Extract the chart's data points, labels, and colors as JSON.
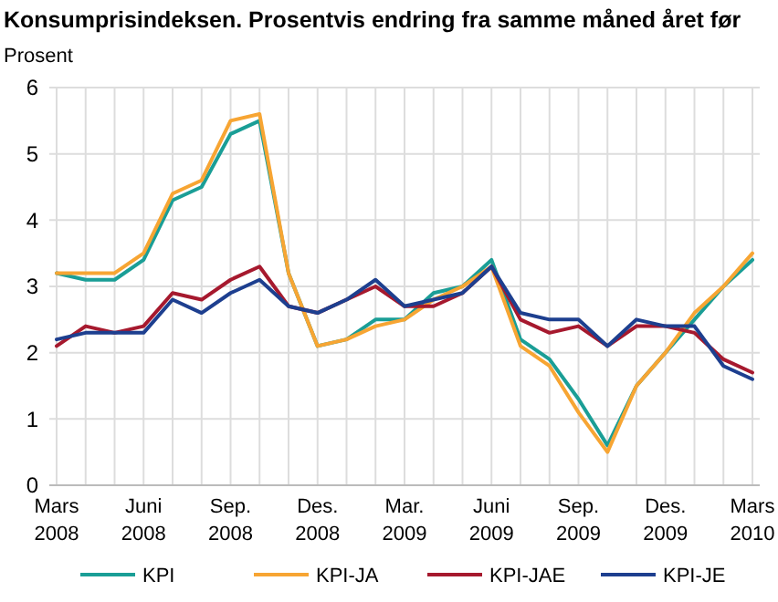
{
  "chart_data": {
    "type": "line",
    "title": "Konsumprisindeksen. Prosentvis endring fra samme måned året før",
    "ylabel": "Prosent",
    "categories": [
      "Mars\n2008",
      null,
      null,
      "Juni\n2008",
      null,
      null,
      "Sep.\n2008",
      null,
      null,
      "Des.\n2008",
      null,
      null,
      "Mar.\n2009",
      null,
      null,
      "Juni\n2009",
      null,
      null,
      "Sep.\n2009",
      null,
      null,
      "Des.\n2009",
      null,
      null,
      "Mars\n2010"
    ],
    "series": [
      {
        "name": "KPI",
        "color": "#1a9e96",
        "values": [
          3.2,
          3.1,
          3.1,
          3.4,
          4.3,
          4.5,
          5.3,
          5.5,
          3.2,
          2.1,
          2.2,
          2.5,
          2.5,
          2.9,
          3.0,
          3.4,
          2.2,
          1.9,
          1.3,
          0.6,
          1.5,
          2.0,
          2.5,
          3.0,
          3.4
        ]
      },
      {
        "name": "KPI-JA",
        "color": "#f7a533",
        "values": [
          3.2,
          3.2,
          3.2,
          3.5,
          4.4,
          4.6,
          5.5,
          5.6,
          3.2,
          2.1,
          2.2,
          2.4,
          2.5,
          2.8,
          3.0,
          3.3,
          2.1,
          1.8,
          1.1,
          0.5,
          1.5,
          2.0,
          2.6,
          3.0,
          3.5
        ]
      },
      {
        "name": "KPI-JAE",
        "color": "#a6192e",
        "values": [
          2.1,
          2.4,
          2.3,
          2.4,
          2.9,
          2.8,
          3.1,
          3.3,
          2.7,
          2.6,
          2.8,
          3.0,
          2.7,
          2.7,
          2.9,
          3.3,
          2.5,
          2.3,
          2.4,
          2.1,
          2.4,
          2.4,
          2.3,
          1.9,
          1.7
        ]
      },
      {
        "name": "KPI-JE",
        "color": "#1d3f8f",
        "values": [
          2.2,
          2.3,
          2.3,
          2.3,
          2.8,
          2.6,
          2.9,
          3.1,
          2.7,
          2.6,
          2.8,
          3.1,
          2.7,
          2.8,
          2.9,
          3.3,
          2.6,
          2.5,
          2.5,
          2.1,
          2.5,
          2.4,
          2.4,
          1.8,
          1.6
        ]
      }
    ],
    "ylim": [
      0,
      6
    ],
    "yticks": [
      0,
      1,
      2,
      3,
      4,
      5,
      6
    ],
    "grid": true,
    "legend": "bottom",
    "marker": "none",
    "line_style": "solid"
  }
}
